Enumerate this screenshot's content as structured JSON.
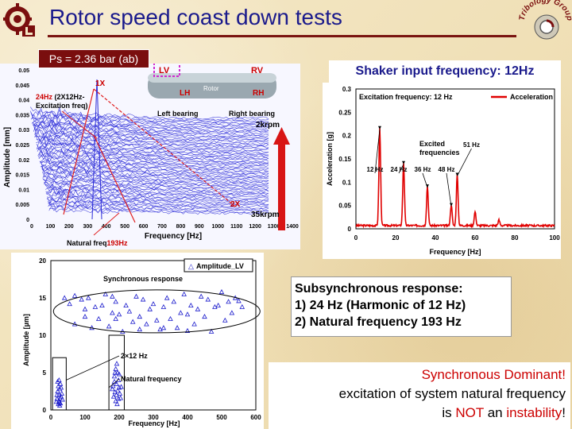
{
  "slide": {
    "title": "Rotor speed coast down tests",
    "ps_label": "Ps = 2.36 bar (ab)",
    "shaker_label": "Shaker input frequency: 12Hz",
    "logo_right_text": "Tribology Group"
  },
  "subsync_box": {
    "heading": "Subsynchronous response:",
    "items": [
      "1) 24 Hz (Harmonic of 12 Hz)",
      "2) Natural frequency 193 Hz"
    ]
  },
  "sync_box": {
    "line1": "Synchronous Dominant!",
    "line2": "excitation of system natural frequency",
    "line3_pre": "is ",
    "line3_not": "NOT",
    "line3_mid": " an ",
    "line3_inst": "instability",
    "line3_end": "!"
  },
  "chart_data": [
    {
      "type": "waterfall",
      "xlabel": "Frequency [Hz]",
      "ylabel": "Amplitude [mm]",
      "xlim": [
        0,
        1400
      ],
      "ylim": [
        0,
        0.05
      ],
      "xticks": [
        0,
        100,
        200,
        300,
        400,
        500,
        600,
        700,
        800,
        900,
        1000,
        1100,
        1200,
        1300,
        1400
      ],
      "yticks": [
        0,
        0.005,
        0.01,
        0.015,
        0.02,
        0.025,
        0.03,
        0.035,
        0.04,
        0.045,
        0.05
      ],
      "ytick_labels": [
        "0",
        "0.005",
        "0.01",
        "0.015",
        "0.02",
        "0.025",
        "0.03",
        "0.035",
        "0.04",
        "0.045",
        "0.05"
      ],
      "speed_top": "2krpm",
      "speed_bottom": "35krpm",
      "annotations": {
        "one_x": "1X",
        "two_x": "2X",
        "excitation_red": "24Hz",
        "excitation_black": " (2X12Hz-",
        "excitation_line2": "Excitation freq)",
        "natural_black": "Natural freq",
        "natural_red": "193Hz"
      },
      "rotor_diagram": {
        "lv": "LV",
        "rv": "RV",
        "lh": "LH",
        "rh": "RH",
        "rotor": "Rotor",
        "left_bearing": "Left bearing",
        "right_bearing": "Right bearing"
      }
    },
    {
      "type": "line",
      "title": "Excitation frequency: 12 Hz",
      "legend": "Acceleration",
      "xlabel": "Frequency [Hz]",
      "ylabel": "Acceleration [g]",
      "xlim": [
        0,
        100
      ],
      "ylim": [
        0,
        0.3
      ],
      "xticks": [
        0,
        20,
        40,
        60,
        80,
        100
      ],
      "yticks": [
        0,
        0.05,
        0.1,
        0.15,
        0.2,
        0.25,
        0.3
      ],
      "ytick_labels": [
        "0",
        "0.05",
        "0.1",
        "0.15",
        "0.2",
        "0.25",
        "0.3"
      ],
      "peaks": [
        {
          "x": 12,
          "y": 0.21,
          "label": "12 Hz"
        },
        {
          "x": 24,
          "y": 0.135,
          "label": "24 Hz"
        },
        {
          "x": 36,
          "y": 0.085,
          "label": "36 Hz"
        },
        {
          "x": 48,
          "y": 0.045,
          "label": "48 Hz"
        },
        {
          "x": 51,
          "y": 0.11,
          "label": "51 Hz"
        },
        {
          "x": 60,
          "y": 0.03,
          "label": ""
        },
        {
          "x": 72,
          "y": 0.012,
          "label": ""
        }
      ],
      "annotation_excited": [
        "Excited",
        "frequencies"
      ]
    },
    {
      "type": "scatter",
      "legend": "Amplitude_LV",
      "xlabel": "Frequency [Hz]",
      "ylabel": "Amplitude [µm]",
      "xlim": [
        0,
        600
      ],
      "ylim": [
        0,
        20
      ],
      "xticks": [
        0,
        100,
        200,
        300,
        400,
        500,
        600
      ],
      "yticks": [
        0,
        5,
        10,
        15,
        20
      ],
      "labels": {
        "sync": "Synchronous response",
        "two_x_12": "2×12 Hz",
        "natural": "Natural frequency"
      },
      "sync_points": [
        [
          40,
          15.0
        ],
        [
          55,
          14.2
        ],
        [
          70,
          15.3
        ],
        [
          90,
          14.8
        ],
        [
          100,
          12.5
        ],
        [
          110,
          15.0
        ],
        [
          120,
          11.0
        ],
        [
          130,
          13.8
        ],
        [
          140,
          12.2
        ],
        [
          150,
          14.0
        ],
        [
          160,
          15.5
        ],
        [
          170,
          11.2
        ],
        [
          180,
          13.0
        ],
        [
          190,
          14.5
        ],
        [
          200,
          12.8
        ],
        [
          210,
          10.5
        ],
        [
          220,
          14.0
        ],
        [
          230,
          13.2
        ],
        [
          240,
          11.8
        ],
        [
          250,
          15.2
        ],
        [
          260,
          12.5
        ],
        [
          270,
          14.8
        ],
        [
          280,
          11.5
        ],
        [
          290,
          13.5
        ],
        [
          300,
          14.2
        ],
        [
          310,
          12.0
        ],
        [
          320,
          10.8
        ],
        [
          330,
          13.8
        ],
        [
          340,
          15.0
        ],
        [
          350,
          12.2
        ],
        [
          360,
          14.5
        ],
        [
          370,
          11.0
        ],
        [
          380,
          13.0
        ],
        [
          390,
          15.5
        ],
        [
          400,
          12.8
        ],
        [
          410,
          14.0
        ],
        [
          420,
          11.5
        ],
        [
          430,
          13.5
        ],
        [
          440,
          15.2
        ],
        [
          450,
          12.5
        ],
        [
          460,
          14.8
        ],
        [
          470,
          10.5
        ],
        [
          480,
          13.8
        ],
        [
          490,
          14.0
        ],
        [
          500,
          15.8
        ],
        [
          510,
          12.0
        ],
        [
          520,
          14.5
        ],
        [
          530,
          13.0
        ],
        [
          540,
          15.0
        ],
        [
          550,
          14.6
        ],
        [
          560,
          13.8
        ],
        [
          70,
          11.5
        ],
        [
          100,
          13.5
        ],
        [
          190,
          12.2
        ],
        [
          260,
          10.8
        ],
        [
          330,
          11.0
        ],
        [
          400,
          10.6
        ],
        [
          180,
          15.2
        ]
      ],
      "cluster_24": [
        [
          18,
          1.5
        ],
        [
          20,
          2.5
        ],
        [
          22,
          3.2
        ],
        [
          24,
          4.0
        ],
        [
          25,
          1.0
        ],
        [
          26,
          2.8
        ],
        [
          28,
          3.5
        ],
        [
          30,
          1.8
        ],
        [
          32,
          2.2
        ],
        [
          22,
          0.8
        ],
        [
          24,
          1.2
        ],
        [
          26,
          0.6
        ],
        [
          20,
          3.8
        ],
        [
          28,
          0.9
        ],
        [
          30,
          3.0
        ],
        [
          18,
          2.0
        ],
        [
          34,
          1.4
        ],
        [
          16,
          1.1
        ],
        [
          24,
          2.0
        ],
        [
          27,
          1.6
        ]
      ],
      "cluster_193": [
        [
          182,
          3.2
        ],
        [
          186,
          4.5
        ],
        [
          190,
          5.5
        ],
        [
          193,
          6.2
        ],
        [
          195,
          5.0
        ],
        [
          198,
          4.0
        ],
        [
          200,
          3.0
        ],
        [
          188,
          2.4
        ],
        [
          192,
          2.0
        ],
        [
          196,
          2.6
        ],
        [
          184,
          1.8
        ],
        [
          202,
          2.2
        ],
        [
          190,
          1.2
        ],
        [
          194,
          0.8
        ],
        [
          198,
          1.5
        ],
        [
          186,
          3.8
        ],
        [
          200,
          4.8
        ],
        [
          192,
          3.5
        ],
        [
          204,
          1.6
        ],
        [
          180,
          2.8
        ],
        [
          206,
          3.1
        ],
        [
          188,
          5.0
        ]
      ]
    }
  ]
}
